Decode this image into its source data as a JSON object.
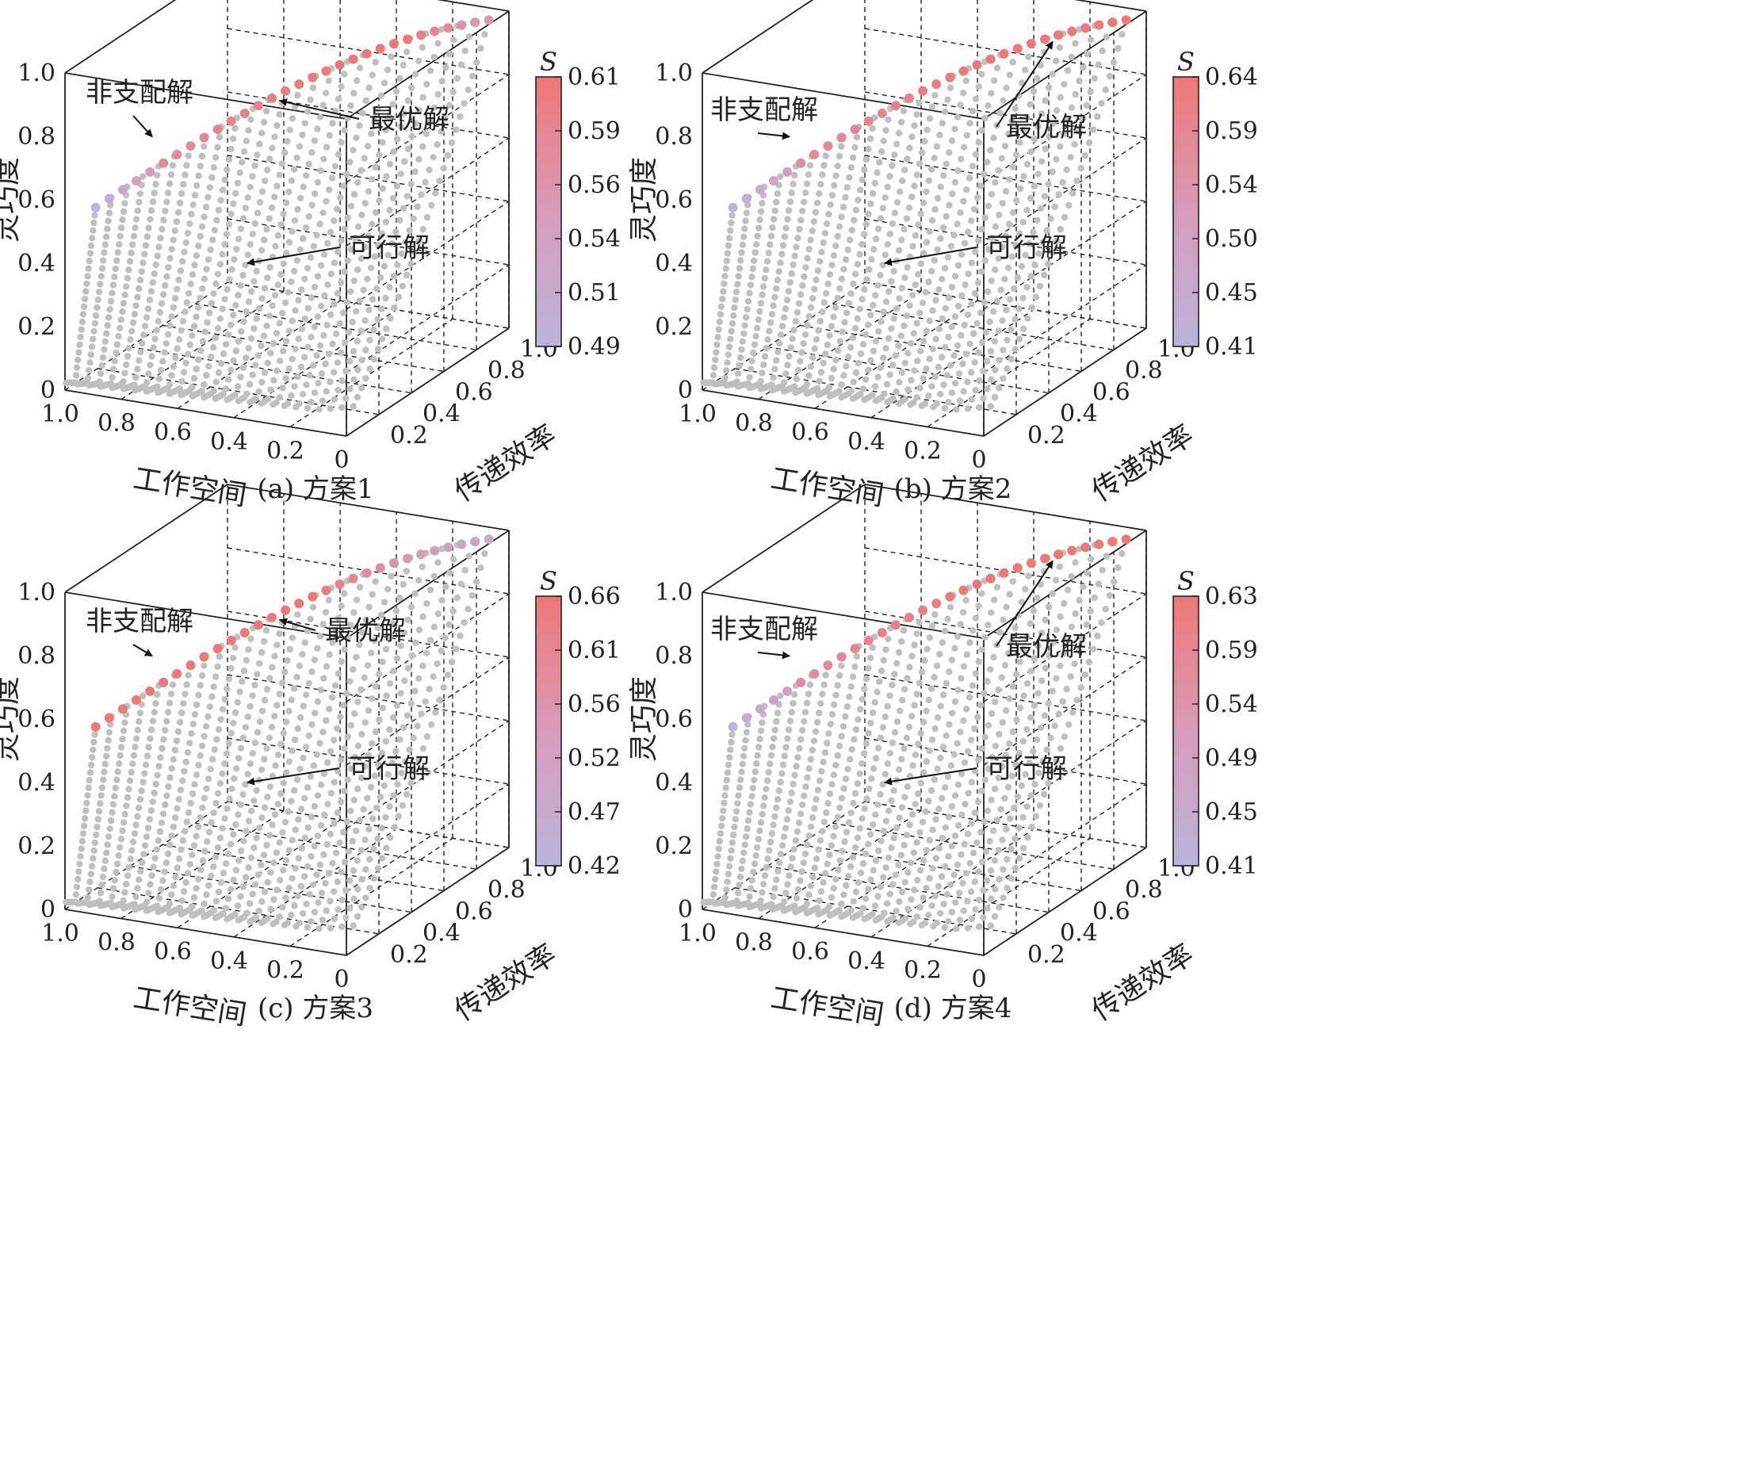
{
  "chart_data": [
    {
      "type": "scatter",
      "caption": "(a) 方案1",
      "axes": {
        "x": {
          "label": "工作空间",
          "range": [
            0,
            1
          ],
          "ticks": [
            "1.0",
            "0.8",
            "0.6",
            "0.4",
            "0.2",
            "0"
          ]
        },
        "y": {
          "label": "传递效率",
          "range": [
            0,
            1
          ],
          "ticks": [
            "0.2",
            "0.4",
            "0.6",
            "0.8",
            "1.0"
          ]
        },
        "z": {
          "label": "灵巧度",
          "range": [
            0,
            1
          ],
          "ticks": [
            "0",
            "0.2",
            "0.4",
            "0.6",
            "0.8",
            "1.0"
          ]
        }
      },
      "grid": true,
      "colorbar": {
        "title": "S",
        "ticks": [
          "0.61",
          "0.59",
          "0.56",
          "0.54",
          "0.51",
          "0.49"
        ],
        "color_low": "#b9b5dc",
        "color_high": "#ee7777"
      },
      "annotations": [
        {
          "text": "非支配解"
        },
        {
          "text": "最优解"
        },
        {
          "text": "可行解"
        }
      ],
      "series": [
        {
          "role": "feasible",
          "color": "#bfbfbf"
        },
        {
          "role": "non-dominated",
          "front_low": "purple",
          "optimum_t": 0.45
        }
      ]
    },
    {
      "type": "scatter",
      "caption": "(b) 方案2",
      "axes": {
        "x": {
          "label": "工作空间",
          "range": [
            0,
            1
          ],
          "ticks": [
            "1.0",
            "0.8",
            "0.6",
            "0.4",
            "0.2",
            "0"
          ]
        },
        "y": {
          "label": "传递效率",
          "range": [
            0,
            1
          ],
          "ticks": [
            "0.2",
            "0.4",
            "0.6",
            "0.8",
            "1.0"
          ]
        },
        "z": {
          "label": "灵巧度",
          "range": [
            0,
            1
          ],
          "ticks": [
            "0",
            "0.2",
            "0.4",
            "0.6",
            "0.8",
            "1.0"
          ]
        }
      },
      "grid": true,
      "colorbar": {
        "title": "S",
        "ticks": [
          "0.64",
          "0.59",
          "0.54",
          "0.50",
          "0.45",
          "0.41"
        ],
        "color_low": "#b9b5dc",
        "color_high": "#ee7777"
      },
      "annotations": [
        {
          "text": "非支配解"
        },
        {
          "text": "最优解"
        },
        {
          "text": "可行解"
        }
      ],
      "series": [
        {
          "role": "feasible",
          "color": "#bfbfbf"
        },
        {
          "role": "non-dominated",
          "front_low": "purple",
          "optimum_t": 0.8
        }
      ]
    },
    {
      "type": "scatter",
      "caption": "(c) 方案3",
      "axes": {
        "x": {
          "label": "工作空间",
          "range": [
            0,
            1
          ],
          "ticks": [
            "1.0",
            "0.8",
            "0.6",
            "0.4",
            "0.2",
            "0"
          ]
        },
        "y": {
          "label": "传递效率",
          "range": [
            0,
            1
          ],
          "ticks": [
            "0.2",
            "0.4",
            "0.6",
            "0.8",
            "1.0"
          ]
        },
        "z": {
          "label": "灵巧度",
          "range": [
            0,
            1
          ],
          "ticks": [
            "0",
            "0.2",
            "0.4",
            "0.6",
            "0.8",
            "1.0"
          ]
        }
      },
      "grid": true,
      "colorbar": {
        "title": "S",
        "ticks": [
          "0.66",
          "0.61",
          "0.56",
          "0.52",
          "0.47",
          "0.42"
        ],
        "color_low": "#b9b5dc",
        "color_high": "#ee7777"
      },
      "annotations": [
        {
          "text": "非支配解"
        },
        {
          "text": "最优解"
        },
        {
          "text": "可行解"
        }
      ],
      "series": [
        {
          "role": "feasible",
          "color": "#bfbfbf"
        },
        {
          "role": "non-dominated",
          "front_low": "red",
          "optimum_t": 0.45
        }
      ]
    },
    {
      "type": "scatter",
      "caption": "(d) 方案4",
      "axes": {
        "x": {
          "label": "工作空间",
          "range": [
            0,
            1
          ],
          "ticks": [
            "1.0",
            "0.8",
            "0.6",
            "0.4",
            "0.2",
            "0"
          ]
        },
        "y": {
          "label": "传递效率",
          "range": [
            0,
            1
          ],
          "ticks": [
            "0.2",
            "0.4",
            "0.6",
            "0.8",
            "1.0"
          ]
        },
        "z": {
          "label": "灵巧度",
          "range": [
            0,
            1
          ],
          "ticks": [
            "0",
            "0.2",
            "0.4",
            "0.6",
            "0.8",
            "1.0"
          ]
        }
      },
      "grid": true,
      "colorbar": {
        "title": "S",
        "ticks": [
          "0.63",
          "0.59",
          "0.54",
          "0.49",
          "0.45",
          "0.41"
        ],
        "color_low": "#b9b5dc",
        "color_high": "#ee7777"
      },
      "annotations": [
        {
          "text": "非支配解"
        },
        {
          "text": "最优解"
        },
        {
          "text": "可行解"
        }
      ],
      "series": [
        {
          "role": "feasible",
          "color": "#bfbfbf"
        },
        {
          "role": "non-dominated",
          "front_low": "purple",
          "optimum_t": 0.8
        }
      ]
    }
  ]
}
